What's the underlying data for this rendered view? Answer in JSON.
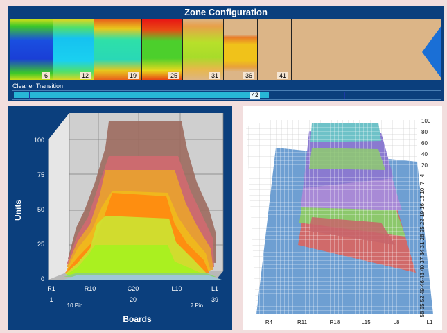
{
  "zone_config": {
    "title": "Zone Configuration",
    "zones": [
      {
        "label": "6"
      },
      {
        "label": "12"
      },
      {
        "label": "19"
      },
      {
        "label": "25"
      },
      {
        "label": "31"
      },
      {
        "label": "36"
      },
      {
        "label": "41"
      }
    ],
    "cleaner_label": "Cleaner Transition",
    "cleaner_value": "42",
    "cleaner_progress": 0.6
  },
  "chart_data": [
    {
      "type": "area",
      "ylabel": "Units",
      "xlabel": "Boards",
      "ylim": [
        0,
        100
      ],
      "yticks": [
        "0",
        "25",
        "50",
        "75",
        "100"
      ],
      "xticks": [
        "R1",
        "R10",
        "C20",
        "L10",
        "L1"
      ],
      "xticks2": [
        "1",
        "20",
        "39"
      ],
      "xticks3": [
        "10 Pin",
        "7 Pin"
      ]
    },
    {
      "type": "area",
      "zticks": [
        "100",
        "80",
        "60",
        "40",
        "20"
      ],
      "distance_ticks": [
        "4",
        "7",
        "10",
        "13",
        "16",
        "19",
        "22",
        "25",
        "28",
        "31",
        "34",
        "37",
        "40",
        "43",
        "46",
        "49",
        "52",
        "55",
        "58"
      ],
      "xticks": [
        "R4",
        "R11",
        "R18",
        "L15",
        "L8",
        "L1"
      ]
    }
  ]
}
